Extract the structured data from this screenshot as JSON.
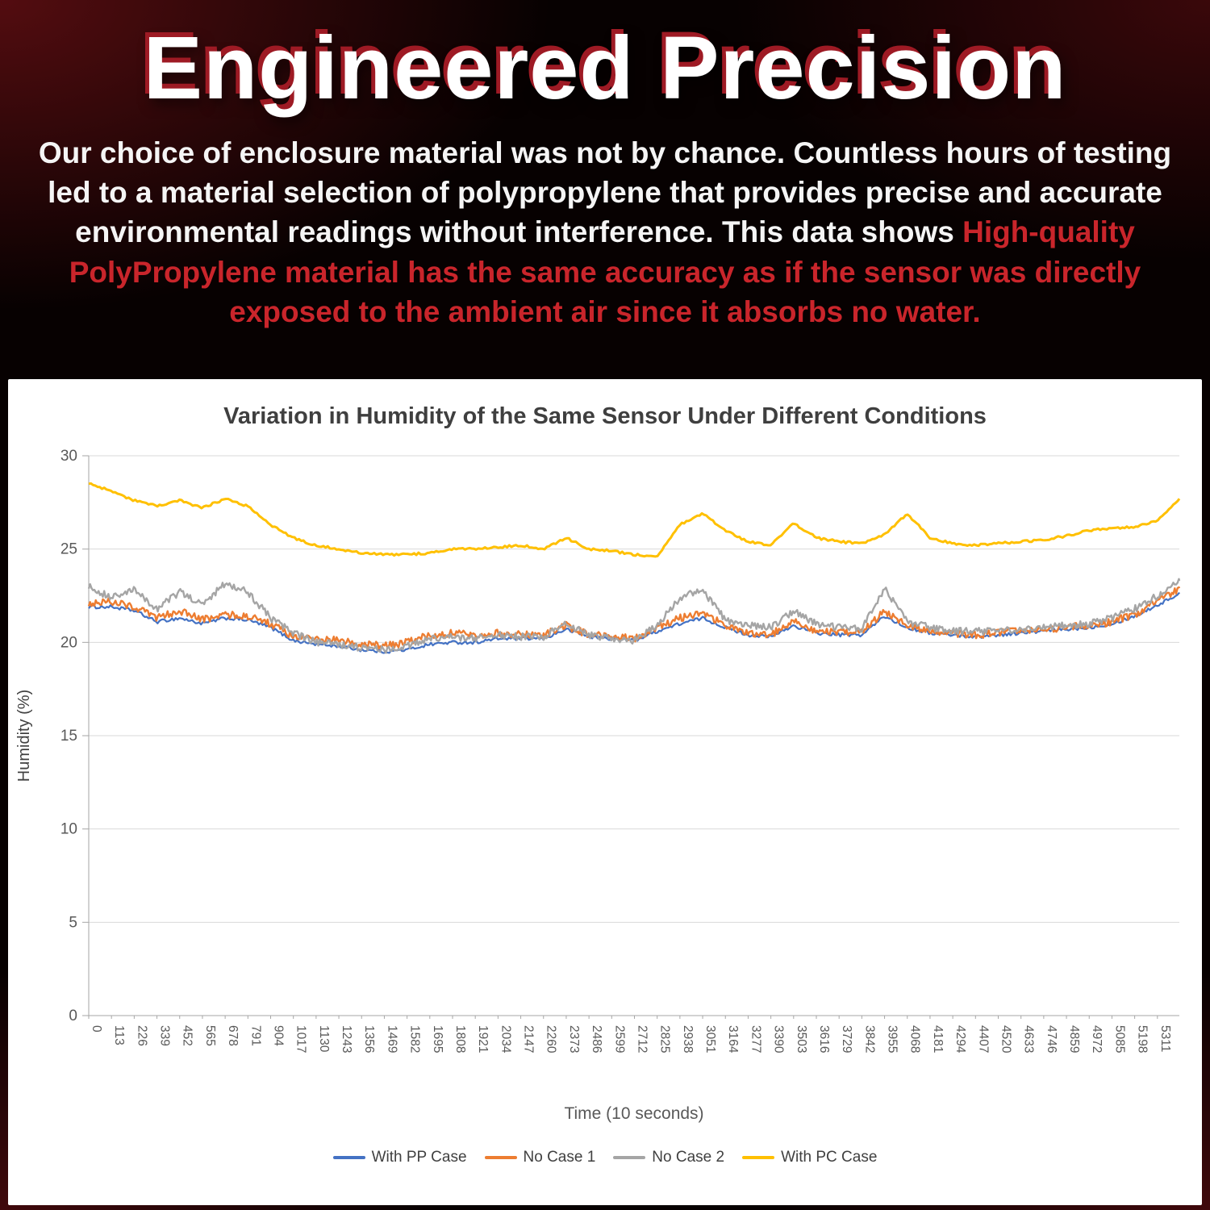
{
  "hero": {
    "title": "Engineered Precision",
    "paragraph_white": "Our choice of enclosure material was not by chance. Countless hours of testing led to a material selection of polypropylene that provides precise and accurate environmental readings without interference. This data shows",
    "paragraph_red": "High-quality PolyPropylene material has the same accuracy as if the sensor was directly exposed to the ambient air since it absorbs no water.",
    "accent_red": "#c9252b"
  },
  "chart_data": {
    "type": "line",
    "title": "Variation in Humidity of the Same Sensor Under Different Conditions",
    "xlabel": "Time (10 seconds)",
    "ylabel": "Humidity (%)",
    "ylim": [
      0,
      30
    ],
    "y_ticks": [
      0,
      5,
      10,
      15,
      20,
      25,
      30
    ],
    "x_tick_step": 113,
    "grid": true,
    "legend_position": "bottom",
    "x_keypoints": [
      0,
      113,
      226,
      339,
      452,
      565,
      678,
      791,
      904,
      1017,
      1130,
      1243,
      1356,
      1469,
      1582,
      1695,
      1808,
      1921,
      2034,
      2147,
      2260,
      2373,
      2486,
      2599,
      2712,
      2825,
      2938,
      3051,
      3164,
      3277,
      3390,
      3503,
      3616,
      3729,
      3842,
      3955,
      4068,
      4181,
      4294,
      4407,
      4520,
      4633,
      4746,
      4859,
      4972,
      5085,
      5198,
      5311,
      5420
    ],
    "series": [
      {
        "name": "With PP Case",
        "color": "#4472C4",
        "values": [
          21.9,
          21.9,
          21.7,
          21.1,
          21.3,
          21.0,
          21.3,
          21.2,
          20.8,
          20.1,
          19.9,
          19.8,
          19.6,
          19.5,
          19.6,
          19.9,
          20.0,
          20.0,
          20.2,
          20.2,
          20.2,
          20.7,
          20.3,
          20.2,
          20.1,
          20.6,
          21.0,
          21.3,
          20.8,
          20.4,
          20.3,
          20.9,
          20.5,
          20.4,
          20.4,
          21.4,
          20.8,
          20.5,
          20.4,
          20.3,
          20.4,
          20.5,
          20.6,
          20.7,
          20.8,
          21.0,
          21.4,
          22.0,
          22.6
        ]
      },
      {
        "name": "No Case 1",
        "color": "#ED7D31",
        "values": [
          22.1,
          22.2,
          21.9,
          21.3,
          21.7,
          21.2,
          21.5,
          21.4,
          21.0,
          20.3,
          20.2,
          20.1,
          19.9,
          19.8,
          20.0,
          20.4,
          20.5,
          20.4,
          20.5,
          20.4,
          20.4,
          20.9,
          20.4,
          20.3,
          20.2,
          20.8,
          21.3,
          21.6,
          20.9,
          20.5,
          20.4,
          21.2,
          20.6,
          20.5,
          20.5,
          21.7,
          20.9,
          20.6,
          20.5,
          20.4,
          20.5,
          20.6,
          20.7,
          20.8,
          20.9,
          21.1,
          21.5,
          22.2,
          22.9
        ]
      },
      {
        "name": "No Case 2",
        "color": "#A5A5A5",
        "values": [
          23.0,
          22.4,
          22.8,
          21.8,
          22.7,
          22.0,
          23.2,
          22.7,
          21.3,
          20.5,
          20.0,
          19.9,
          19.7,
          19.6,
          19.8,
          20.2,
          20.3,
          20.2,
          20.4,
          20.3,
          20.3,
          21.0,
          20.4,
          20.2,
          20.1,
          20.9,
          22.4,
          22.8,
          21.2,
          20.9,
          20.8,
          21.7,
          21.0,
          20.8,
          20.7,
          22.9,
          21.1,
          20.8,
          20.6,
          20.6,
          20.6,
          20.7,
          20.8,
          20.9,
          21.0,
          21.3,
          21.8,
          22.5,
          23.3
        ]
      },
      {
        "name": "With PC Case",
        "color": "#FFC000",
        "values": [
          28.5,
          28.1,
          27.6,
          27.3,
          27.6,
          27.2,
          27.7,
          27.3,
          26.3,
          25.6,
          25.2,
          25.0,
          24.8,
          24.7,
          24.7,
          24.8,
          25.0,
          25.0,
          25.1,
          25.2,
          25.0,
          25.6,
          25.0,
          24.9,
          24.7,
          24.6,
          26.3,
          26.9,
          26.0,
          25.4,
          25.2,
          26.4,
          25.6,
          25.4,
          25.3,
          25.8,
          26.9,
          25.6,
          25.3,
          25.2,
          25.3,
          25.4,
          25.5,
          25.7,
          26.0,
          26.1,
          26.2,
          26.5,
          27.7
        ]
      }
    ]
  }
}
